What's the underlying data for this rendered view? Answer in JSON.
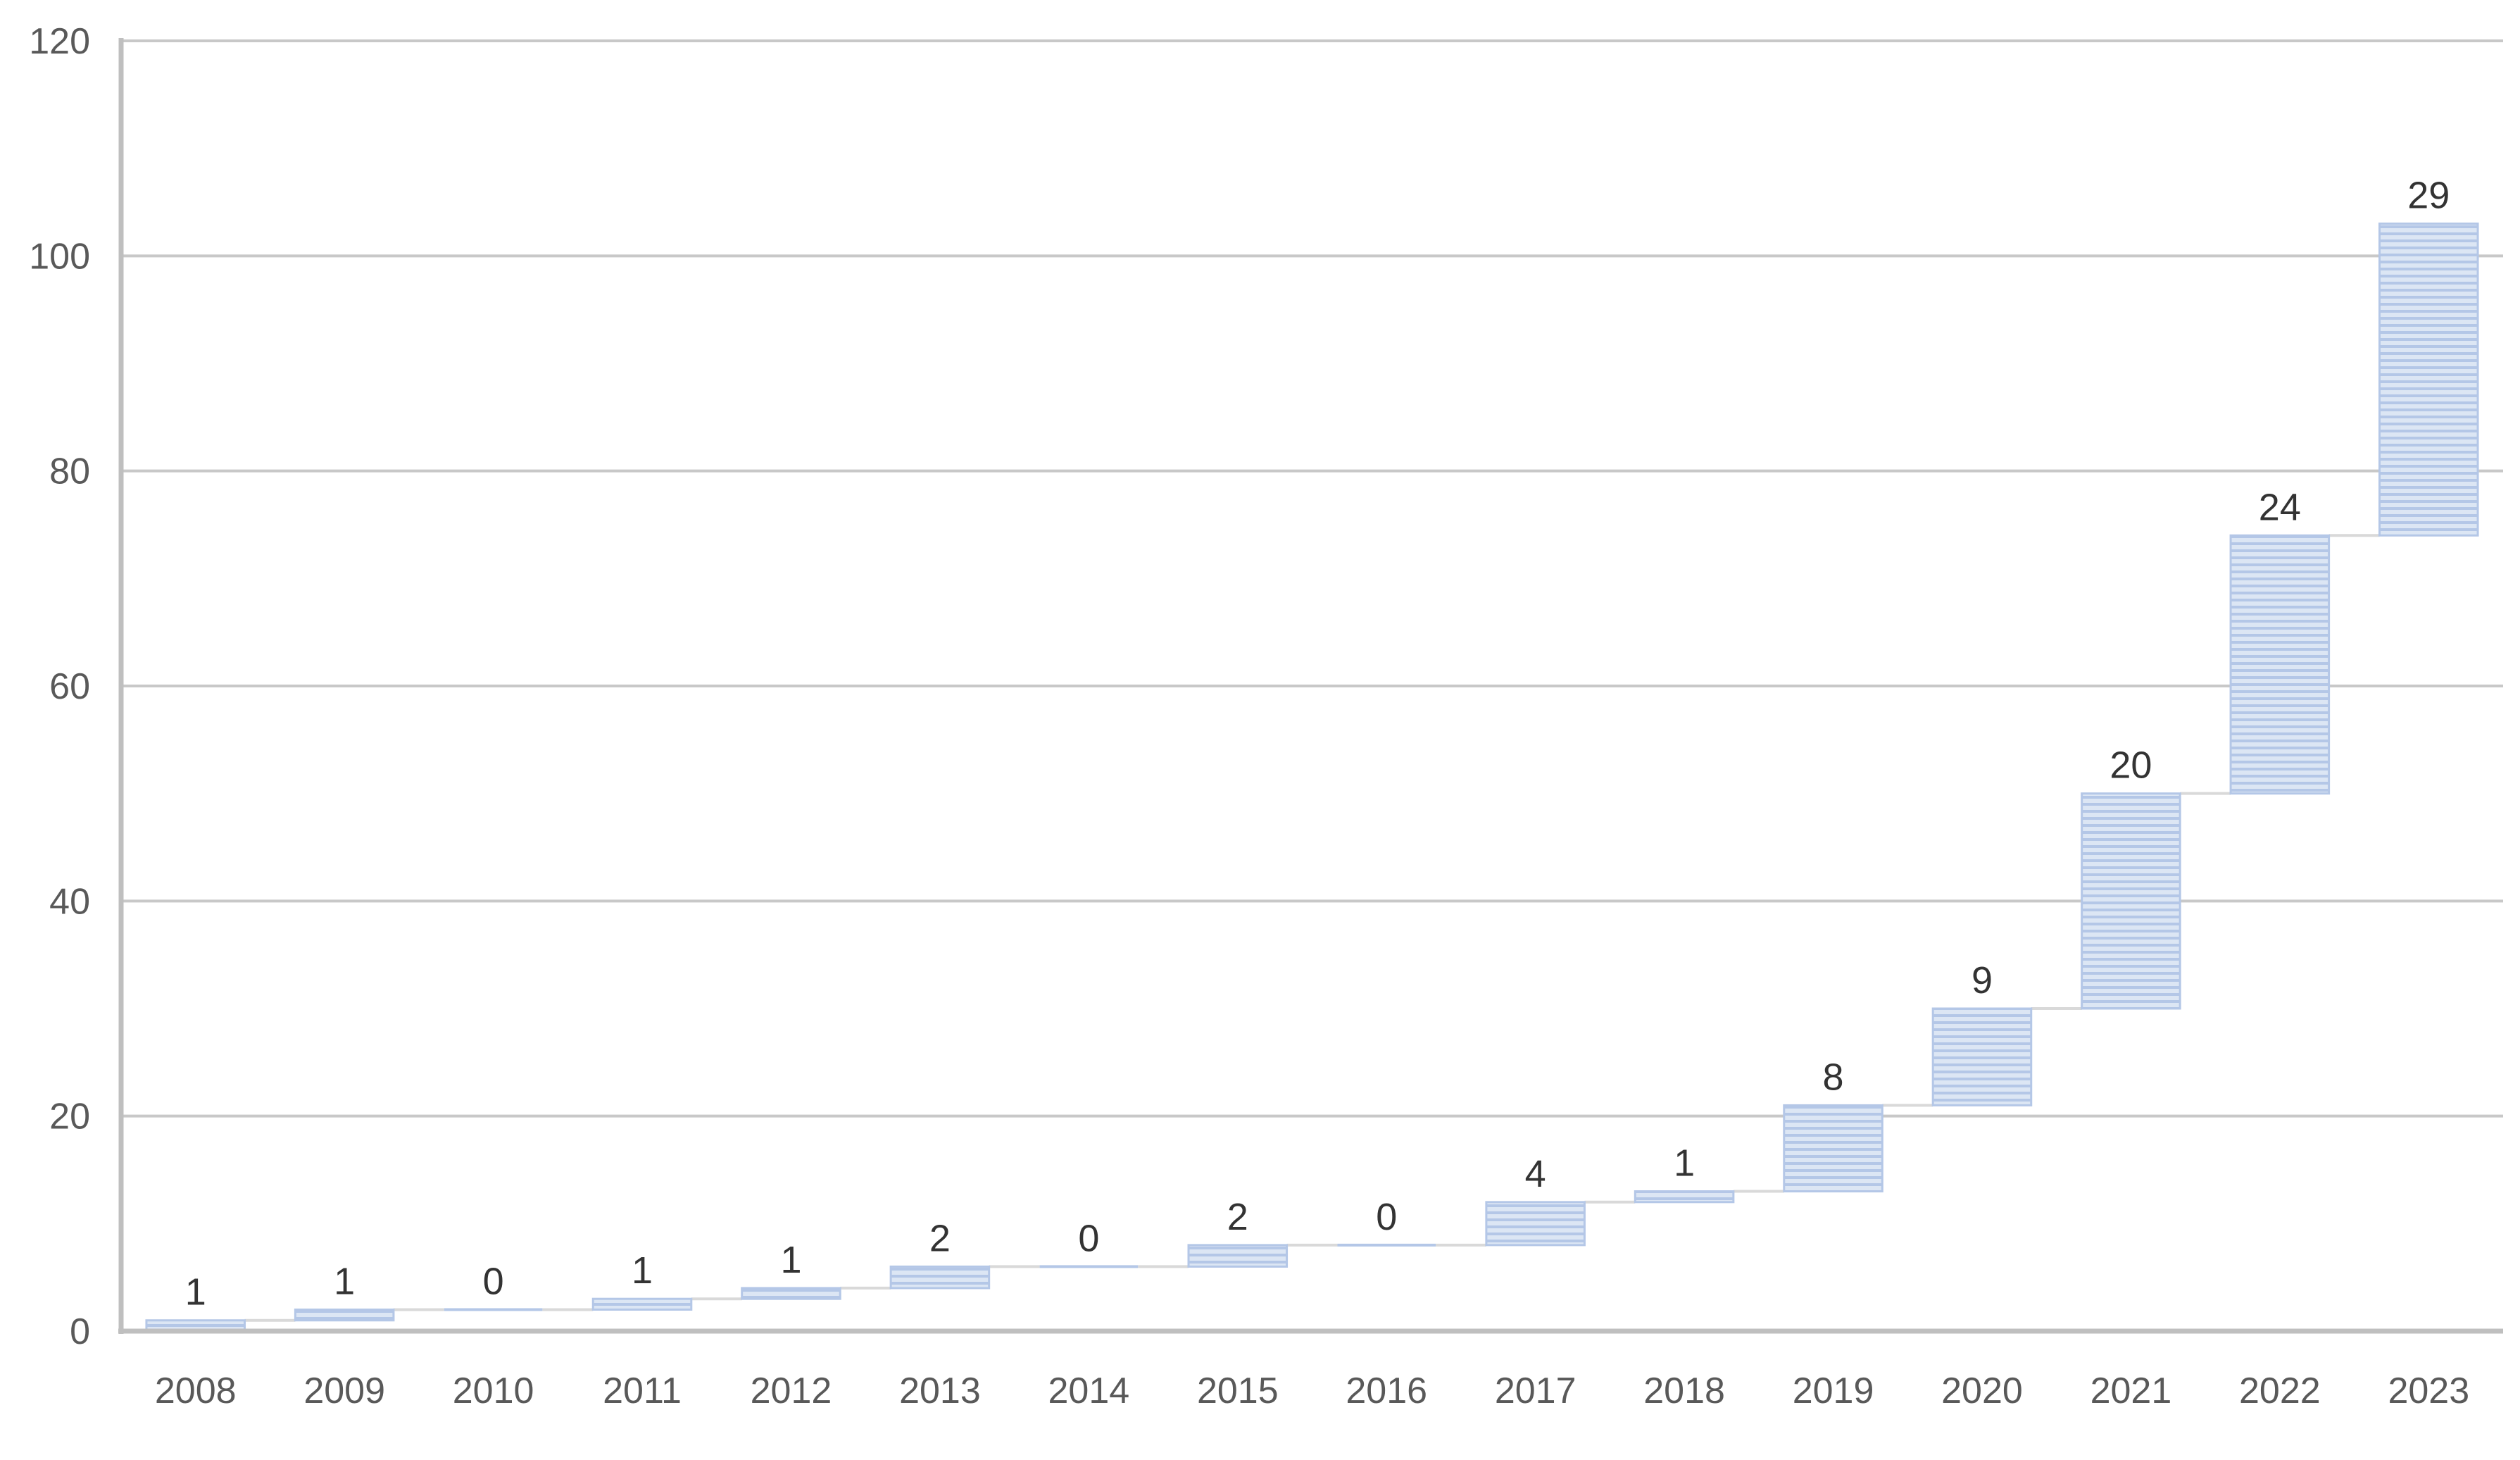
{
  "chart_data": {
    "type": "bar",
    "subtype": "waterfall",
    "title": "",
    "xlabel": "",
    "ylabel": "",
    "ylim": [
      0,
      120
    ],
    "y_ticks": [
      "0",
      "20",
      "40",
      "60",
      "80",
      "100",
      "120"
    ],
    "grid": true,
    "legend": "none",
    "categories": [
      "2008",
      "2009",
      "2010",
      "2011",
      "2012",
      "2013",
      "2014",
      "2015",
      "2016",
      "2017",
      "2018",
      "2019",
      "2020",
      "2021",
      "2022",
      "2023"
    ],
    "series": [
      {
        "values": [
          1,
          1,
          0,
          1,
          1,
          2,
          0,
          2,
          0,
          4,
          1,
          8,
          9,
          20,
          24,
          29
        ],
        "cumulative_start": [
          0,
          1,
          2,
          2,
          3,
          4,
          6,
          6,
          8,
          8,
          12,
          13,
          21,
          30,
          50,
          74
        ],
        "cumulative_end": [
          1,
          2,
          2,
          3,
          4,
          6,
          6,
          8,
          8,
          12,
          13,
          21,
          30,
          50,
          74,
          103
        ]
      }
    ],
    "colors": {
      "bar_fill": "#dce6f4",
      "bar_stripe": "#b4c7e7",
      "connector": "#d9d9d9",
      "gridline": "#c8c8c8",
      "axis": "#bfbfbf",
      "tick_text": "#595959",
      "data_label_text": "#333333"
    }
  }
}
